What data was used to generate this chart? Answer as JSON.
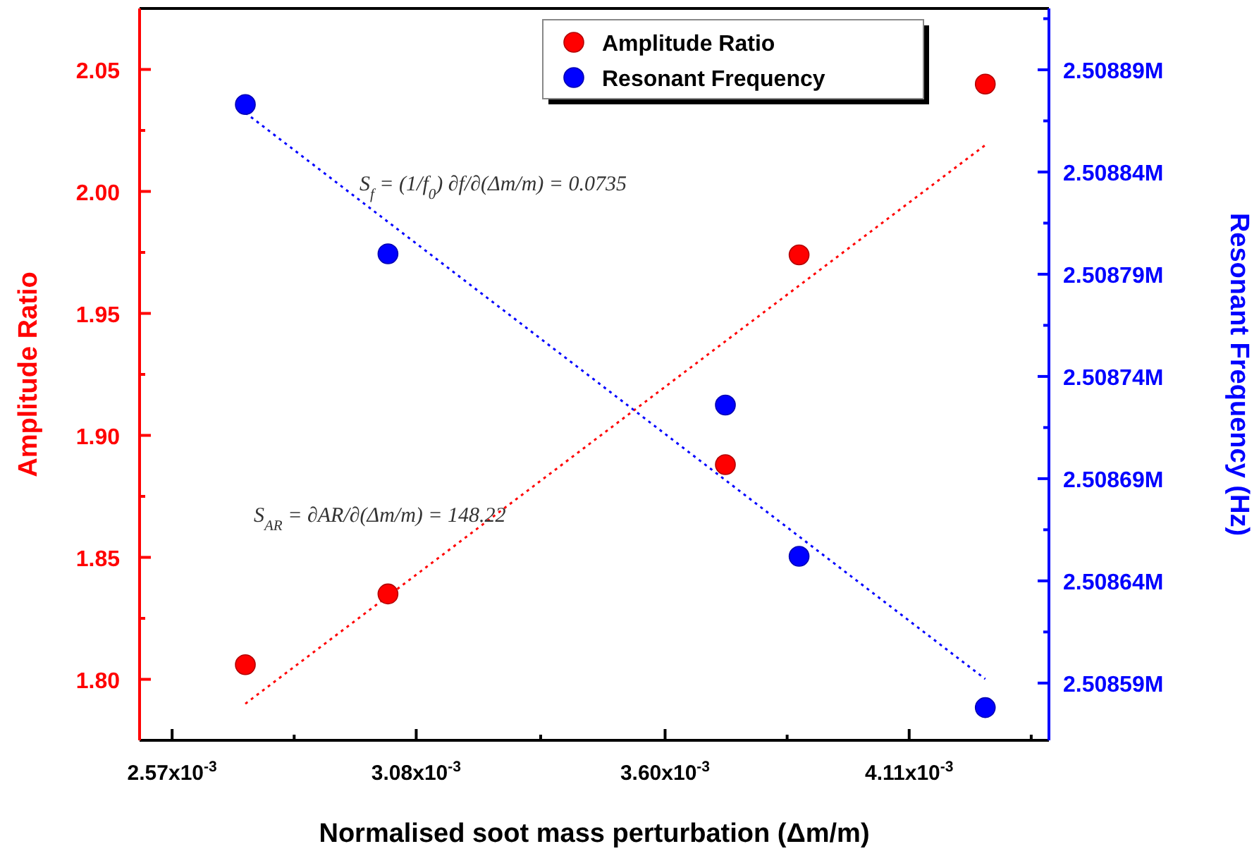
{
  "chart_data": {
    "type": "scatter",
    "xlabel": "Normalised soot mass perturbation (Δm/m)",
    "ylabel": "Amplitude Ratio",
    "y2label": "Resonant Frequency (Hz)",
    "xlim": [
      0.002502,
      0.004402
    ],
    "ylim": [
      1.775,
      2.075
    ],
    "y2lim": [
      2508562,
      2508920
    ],
    "xticks": [
      {
        "value": 0.00257,
        "label": "2.57x10$^{-3}$"
      },
      {
        "value": 0.002825,
        "label": null
      },
      {
        "value": 0.00308,
        "label": "3.08x10$^{-3}$"
      },
      {
        "value": 0.00334,
        "label": null
      },
      {
        "value": 0.0036,
        "label": "3.60x10$^{-3}$"
      },
      {
        "value": 0.003855,
        "label": null
      },
      {
        "value": 0.00411,
        "label": "4.11x10$^{-3}$"
      },
      {
        "value": 0.004365,
        "label": null
      }
    ],
    "yticks": [
      {
        "value": 1.8,
        "label": "1.80"
      },
      {
        "value": 1.825,
        "label": null
      },
      1.85,
      {
        "value": 1.875,
        "label": null
      },
      {
        "value": 1.9,
        "label": "1.90"
      },
      {
        "value": 1.925,
        "label": null
      },
      1.95,
      {
        "value": 1.975,
        "label": null
      },
      {
        "value": 2,
        "label": "2.00"
      },
      {
        "value": 2.025,
        "label": null
      },
      2.05
    ],
    "y2ticks": [
      {
        "value": 2508590,
        "label": "2.50859M"
      },
      {
        "value": 2508615,
        "label": null
      },
      {
        "value": 2508640,
        "label": "2.50864M"
      },
      {
        "value": 2508665,
        "label": null
      },
      {
        "value": 2508690,
        "label": "2.50869M"
      },
      {
        "value": 2508715,
        "label": null
      },
      {
        "value": 2508740,
        "label": "2.50874M"
      },
      {
        "value": 2508765,
        "label": null
      },
      {
        "value": 2508790,
        "label": "2.50879M"
      },
      {
        "value": 2508815,
        "label": null
      },
      {
        "value": 2508840,
        "label": "2.50884M"
      },
      {
        "value": 2508865,
        "label": null
      },
      {
        "value": 2508890,
        "label": "2.50889M"
      },
      {
        "value": 2508915,
        "label": null
      }
    ],
    "marker": "circle",
    "legend": "top right",
    "series": [
      {
        "name": "Amplitude Ratio",
        "color": "#ff0000",
        "x": [
          0.002723,
          0.003021,
          0.003726,
          0.00388,
          0.004269
        ],
        "values": [
          1.806,
          1.835,
          1.888,
          1.974,
          2.044
        ]
      },
      {
        "name": "Resonant Frequency",
        "color": "#0000ff",
        "axis": "y2",
        "x": [
          0.002723,
          0.003021,
          0.003726,
          0.00388,
          0.004269
        ],
        "values": [
          2508873,
          2508800,
          2508726,
          2508652,
          2508578
        ]
      },
      {
        "type": "line",
        "color": "#ff0000",
        "marker": "none",
        "line_style": "dotted",
        "x": [
          0.002723,
          0.004269
        ],
        "values": [
          1.79,
          2.019
        ]
      },
      {
        "type": "line",
        "color": "#0000ff",
        "marker": "none",
        "line_style": "dotted",
        "axis": "y2",
        "x": [
          0.002723,
          0.004269
        ],
        "values": [
          2508869,
          2508592
        ]
      }
    ],
    "annotations": [
      "S$_{f}$ = (1/f$_{0}$) ∂f/∂(Δm/m) = 0.0735",
      "S$_{AR}$ = ∂AR/∂(Δm/m) = 148.22"
    ]
  }
}
